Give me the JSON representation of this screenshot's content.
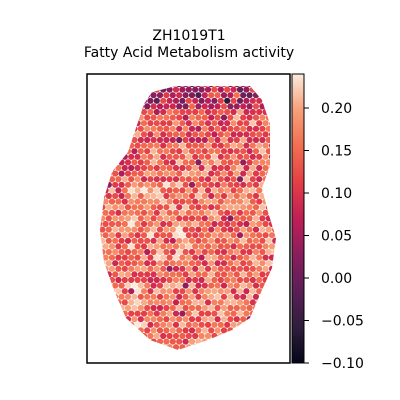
{
  "chart_data": {
    "type": "heatmap",
    "title": "ZH1019T1",
    "subtitle": "Fatty Acid Metabolism activity",
    "xlabel": "",
    "ylabel": "",
    "grid": false,
    "colorbar": {
      "colormap": "rocket",
      "range": [
        -0.1,
        0.24
      ],
      "ticks": [
        0.2,
        0.15,
        0.1,
        0.05,
        0.0,
        -0.05,
        -0.1
      ],
      "tick_labels": [
        "0.20",
        "0.15",
        "0.10",
        "0.05",
        "0.00",
        "−0.05",
        "−0.10"
      ]
    },
    "spot_pattern": "hexagonal spot array; mostly 0.08–0.22 with darker low-activity spots near the top edge and upper-left",
    "colors": {
      "low": "#03051a",
      "mid": "#d01e4e",
      "high": "#faebdd"
    }
  }
}
